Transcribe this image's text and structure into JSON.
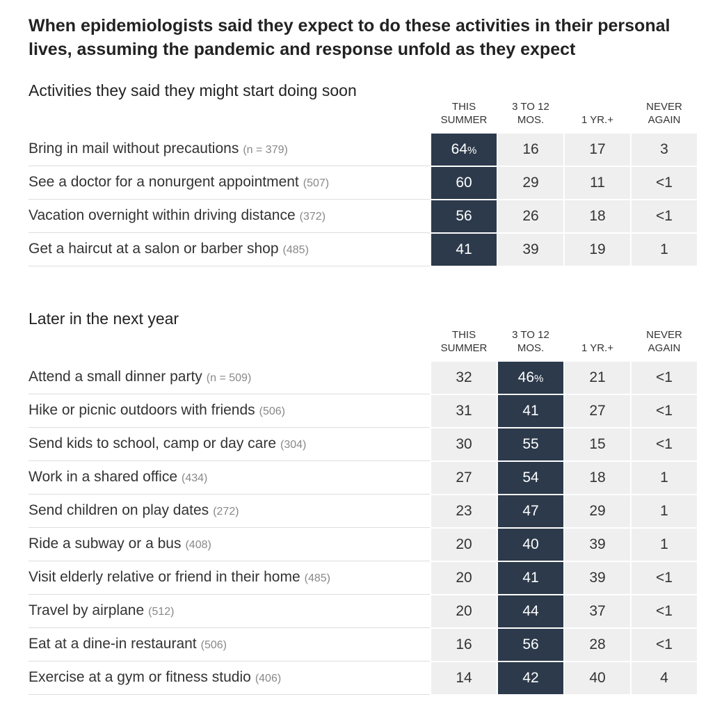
{
  "title": "When epidemiologists said they expect to do these activities in their personal lives, assuming the pandemic and response unfold as they expect",
  "columns": [
    {
      "line1": "THIS",
      "line2": "SUMMER"
    },
    {
      "line1": "3 TO 12",
      "line2": "MOS."
    },
    {
      "line1": "",
      "line2": "1 YR.+"
    },
    {
      "line1": "NEVER",
      "line2": "AGAIN"
    }
  ],
  "colors": {
    "highlight": "#2c3a4b",
    "cell_bg": "#efefef",
    "highlight_text": "#ffffff"
  },
  "chart_data": {
    "type": "table",
    "columns": [
      "THIS SUMMER",
      "3 TO 12 MOS.",
      "1 YR.+",
      "NEVER AGAIN"
    ],
    "sections": [
      {
        "title": "Activities they said they might start doing soon",
        "highlight_column": 0,
        "rows": [
          {
            "label": "Bring in mail without precautions",
            "n": "(n = 379)",
            "values": [
              "64",
              "16",
              "17",
              "3"
            ],
            "first_pct": "%"
          },
          {
            "label": "See a doctor for a nonurgent appointment",
            "n": "(507)",
            "values": [
              "60",
              "29",
              "11",
              "<1"
            ],
            "first_pct": ""
          },
          {
            "label": "Vacation overnight within driving distance",
            "n": "(372)",
            "values": [
              "56",
              "26",
              "18",
              "<1"
            ],
            "first_pct": ""
          },
          {
            "label": "Get a haircut at a salon or barber shop",
            "n": "(485)",
            "values": [
              "41",
              "39",
              "19",
              "1"
            ],
            "first_pct": ""
          }
        ]
      },
      {
        "title": "Later in the next year",
        "highlight_column": 1,
        "rows": [
          {
            "label": "Attend a small dinner party",
            "n": "(n = 509)",
            "values": [
              "32",
              "46",
              "21",
              "<1"
            ],
            "first_pct": "%"
          },
          {
            "label": "Hike or picnic outdoors with friends",
            "n": "(506)",
            "values": [
              "31",
              "41",
              "27",
              "<1"
            ],
            "first_pct": ""
          },
          {
            "label": "Send kids to school, camp or day care",
            "n": "(304)",
            "values": [
              "30",
              "55",
              "15",
              "<1"
            ],
            "first_pct": ""
          },
          {
            "label": "Work in a shared office",
            "n": "(434)",
            "values": [
              "27",
              "54",
              "18",
              "1"
            ],
            "first_pct": ""
          },
          {
            "label": "Send children on play dates",
            "n": "(272)",
            "values": [
              "23",
              "47",
              "29",
              "1"
            ],
            "first_pct": ""
          },
          {
            "label": "Ride a subway or a bus",
            "n": "(408)",
            "values": [
              "20",
              "40",
              "39",
              "1"
            ],
            "first_pct": ""
          },
          {
            "label": "Visit elderly relative or friend in their home",
            "n": "(485)",
            "values": [
              "20",
              "41",
              "39",
              "<1"
            ],
            "first_pct": ""
          },
          {
            "label": "Travel by airplane",
            "n": "(512)",
            "values": [
              "20",
              "44",
              "37",
              "<1"
            ],
            "first_pct": ""
          },
          {
            "label": "Eat at a dine-in restaurant",
            "n": "(506)",
            "values": [
              "16",
              "56",
              "28",
              "<1"
            ],
            "first_pct": ""
          },
          {
            "label": "Exercise at a gym or fitness studio",
            "n": "(406)",
            "values": [
              "14",
              "42",
              "40",
              "4"
            ],
            "first_pct": ""
          }
        ]
      }
    ]
  }
}
